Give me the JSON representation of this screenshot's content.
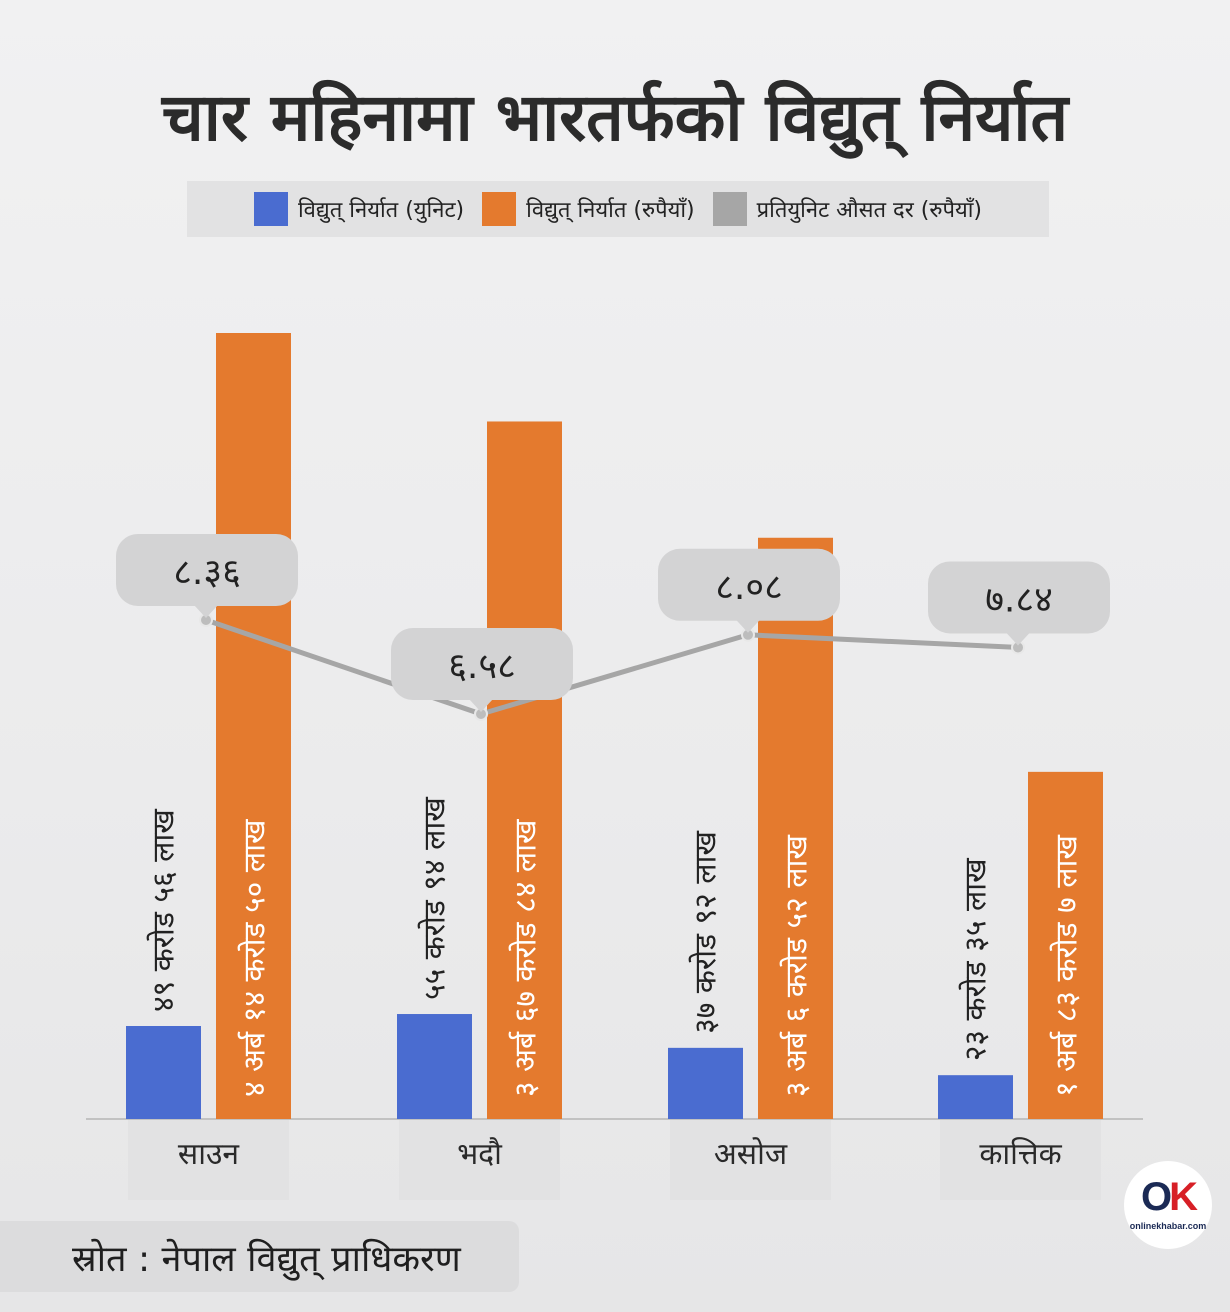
{
  "title": "चार महिनामा भारतर्फको विद्युत् निर्यात",
  "legend": [
    {
      "label": "विद्युत् निर्यात (युनिट)",
      "color": "#4a6cd0"
    },
    {
      "label": "विद्युत् निर्यात (रुपैयाँ)",
      "color": "#e47a2e"
    },
    {
      "label": "प्रतियुनिट औसत दर (रुपैयाँ)",
      "color": "#a6a6a6"
    }
  ],
  "source": "स्रोत : नेपाल विद्युत् प्राधिकरण",
  "logo": {
    "mark_o": "O",
    "mark_k": "K",
    "text": "onlinekhabar.com"
  },
  "chart_data": {
    "type": "bar",
    "categories": [
      "साउन",
      "भदौ",
      "असोज",
      "कात्तिक"
    ],
    "series": [
      {
        "name": "विद्युत् निर्यात (युनिट)",
        "color": "#4a6cd0",
        "values": [
          49.56,
          55.94,
          37.92,
          23.35
        ],
        "labels": [
          "४९ करोड ५६ लाख",
          "५५ करोड ९४ लाख",
          "३७ करोड ९२ लाख",
          "२३ करोड ३५ लाख"
        ]
      },
      {
        "name": "विद्युत् निर्यात (रुपैयाँ)",
        "color": "#e47a2e",
        "values": [
          414.5,
          367.84,
          306.52,
          183.07
        ],
        "labels": [
          "४ अर्ब १४ करोड ५० लाख",
          "३ अर्ब ६७ करोड ८४ लाख",
          "३ अर्ब  ६ करोड ५२ लाख",
          "१ अर्ब ८३ करोड ७ लाख"
        ]
      },
      {
        "name": "प्रतियुनिट औसत दर (रुपैयाँ)",
        "type": "line",
        "color": "#a6a6a6",
        "values": [
          8.36,
          6.58,
          8.08,
          7.84
        ],
        "labels": [
          "८.३६",
          "६.५८",
          "८.०८",
          "७.८४"
        ]
      }
    ],
    "legend_position": "top"
  }
}
